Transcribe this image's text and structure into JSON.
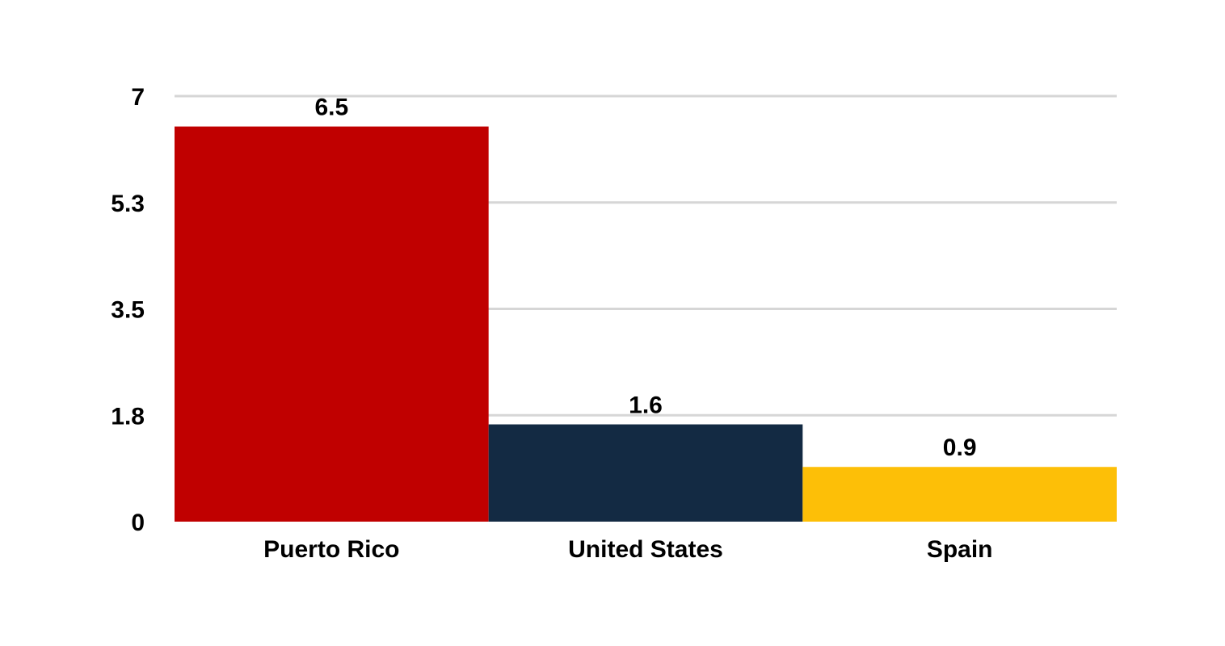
{
  "chart_data": {
    "type": "bar",
    "categories": [
      "Puerto Rico",
      "United States",
      "Spain"
    ],
    "values": [
      6.5,
      1.6,
      0.9
    ],
    "value_labels": [
      "6.5",
      "1.6",
      "0.9"
    ],
    "colors": [
      "#c00000",
      "#132a43",
      "#fdbf07"
    ],
    "yticks": [
      0,
      1.75,
      3.5,
      5.25,
      7
    ],
    "ytick_labels": [
      "0",
      "1.8",
      "3.5",
      "5.3",
      "7"
    ],
    "ylim": [
      0,
      7
    ],
    "grid": true,
    "grid_color": "#d6d6d6",
    "title": "",
    "xlabel": "",
    "ylabel": ""
  }
}
